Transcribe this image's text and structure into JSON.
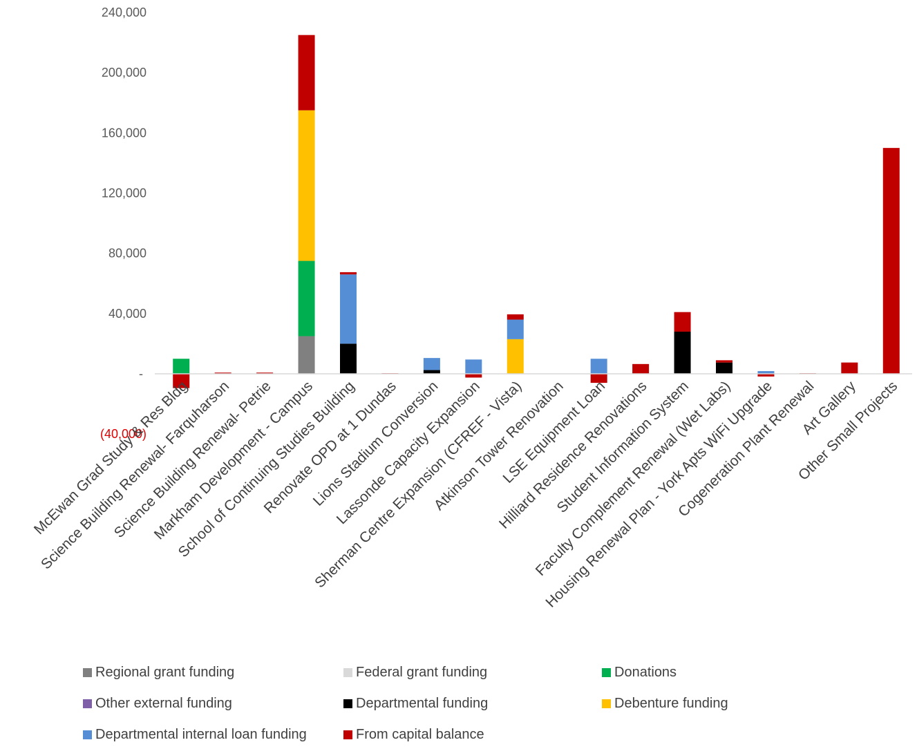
{
  "chart_data": {
    "type": "bar",
    "stacked": true,
    "categories": [
      "McEwan Grad Study & Res Bldg",
      "Science Building Renewal- Farquharson",
      "Science Building Renewal- Petrie",
      "Markham Development - Campus",
      "School of Continuing Studies Building",
      "Renovate OPD at 1 Dundas",
      "Lions Stadium Conversion",
      "Lassonde Capacity Expansion",
      "Sherman Centre Expansion (CFREF - Vista)",
      "Atkinson Tower Renovation",
      "LSE Equipment Loan",
      "Hilliard Residence Renovations",
      "Student Information System",
      "Faculty Complement Renewal (Wet Labs)",
      "Housing Renewal Plan - York Apts WiFi Upgrade",
      "Cogeneration Plant Renewal",
      "Art Gallery",
      "Other Small Projects"
    ],
    "series": [
      {
        "name": "Regional grant funding",
        "color": "#808080",
        "values": [
          0,
          0,
          0,
          25000,
          0,
          0,
          0,
          0,
          0,
          0,
          0,
          0,
          0,
          0,
          0,
          0,
          0,
          0
        ]
      },
      {
        "name": "Federal grant funding",
        "color": "#d9d9d9",
        "values": [
          0,
          0,
          0,
          0,
          0,
          0,
          0,
          0,
          0,
          0,
          0,
          0,
          0,
          0,
          0,
          0,
          0,
          0
        ]
      },
      {
        "name": "Donations",
        "color": "#00b050",
        "values": [
          10000,
          0,
          0,
          50000,
          0,
          0,
          0,
          0,
          0,
          0,
          0,
          0,
          0,
          0,
          0,
          0,
          0,
          0
        ]
      },
      {
        "name": "Other external funding",
        "color": "#7f5fa8",
        "values": [
          0,
          0,
          0,
          0,
          0,
          0,
          0,
          0,
          0,
          0,
          0,
          0,
          0,
          0,
          0,
          0,
          0,
          0
        ]
      },
      {
        "name": "Departmental funding",
        "color": "#000000",
        "values": [
          0,
          0,
          0,
          0,
          20000,
          0,
          2500,
          0,
          0,
          0,
          0,
          0,
          28000,
          7500,
          0,
          0,
          0,
          0
        ]
      },
      {
        "name": "Debenture funding",
        "color": "#ffc000",
        "values": [
          0,
          0,
          0,
          100000,
          0,
          0,
          0,
          0,
          23000,
          0,
          0,
          0,
          0,
          0,
          0,
          0,
          0,
          0
        ]
      },
      {
        "name": "Departmental internal loan funding",
        "color": "#558ed5",
        "values": [
          0,
          0,
          0,
          0,
          46000,
          0,
          8000,
          9500,
          13000,
          0,
          10000,
          0,
          0,
          0,
          1800,
          0,
          0,
          0
        ]
      },
      {
        "name": "From capital balance",
        "color": "#c00000",
        "values": [
          -9500,
          800,
          800,
          50000,
          1500,
          400,
          0,
          -2500,
          3500,
          0,
          -6000,
          6500,
          13000,
          1500,
          -1800,
          400,
          7500,
          150000
        ]
      }
    ],
    "yticks": [
      {
        "value": 240000,
        "label": "240,000"
      },
      {
        "value": 200000,
        "label": "200,000"
      },
      {
        "value": 160000,
        "label": "160,000"
      },
      {
        "value": 120000,
        "label": "120,000"
      },
      {
        "value": 80000,
        "label": "80,000"
      },
      {
        "value": 40000,
        "label": "40,000"
      },
      {
        "value": 0,
        "label": "-"
      },
      {
        "value": -40000,
        "label": "(40,000)"
      }
    ],
    "ylim": [
      -40000,
      240000
    ],
    "grid": false,
    "legend_position": "bottom"
  }
}
